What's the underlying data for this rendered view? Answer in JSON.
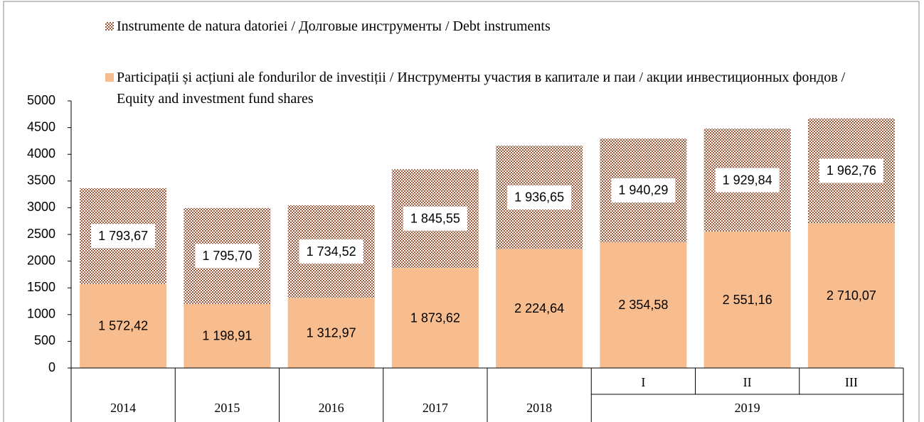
{
  "chart_data": {
    "type": "stacked_bar",
    "categories": [
      null,
      null,
      null,
      null,
      null,
      "I",
      "II",
      "III"
    ],
    "category_groups": [
      {
        "label": "2014",
        "span": 1
      },
      {
        "label": "2015",
        "span": 1
      },
      {
        "label": "2016",
        "span": 1
      },
      {
        "label": "2017",
        "span": 1
      },
      {
        "label": "2018",
        "span": 1
      },
      {
        "label": "2019",
        "span": 3
      }
    ],
    "series": [
      {
        "name": "Participații și acțiuni ale fondurilor de investiții / Инструменты участия в капитале и паи / акции инвестиционных фондов / Equity and investment fund shares",
        "color": "#f8bd8e",
        "pattern": "solid",
        "values": [
          1572.42,
          1198.91,
          1312.97,
          1873.62,
          2224.64,
          2354.58,
          2551.16,
          2710.07
        ],
        "value_labels": [
          "1 572,42",
          "1 198,91",
          "1 312,97",
          "1 873,62",
          "2 224,64",
          "2 354,58",
          "2 551,16",
          "2 710,07"
        ]
      },
      {
        "name": "Instrumente de natura datoriei / Долговые инструменты / Debt instruments",
        "color": "#9c5a3c",
        "pattern": "checker",
        "values": [
          1793.67,
          1795.7,
          1734.52,
          1845.55,
          1936.65,
          1940.29,
          1929.84,
          1962.76
        ],
        "value_labels": [
          "1 793,67",
          "1 795,70",
          "1 734,52",
          "1 845,55",
          "1 936,65",
          "1 940,29",
          "1 929,84",
          "1 962,76"
        ]
      }
    ],
    "ylim": [
      0,
      5000
    ],
    "yticks": [
      0,
      500,
      1000,
      1500,
      2000,
      2500,
      3000,
      3500,
      4000,
      4500,
      5000
    ],
    "grid": false,
    "legend": "top-left"
  }
}
